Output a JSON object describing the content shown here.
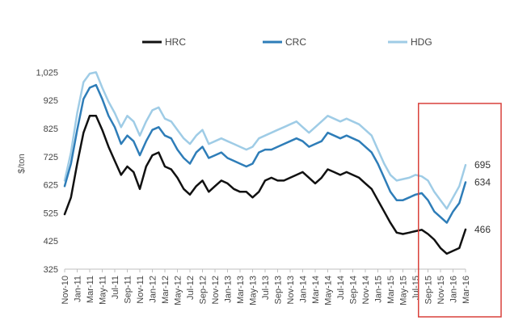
{
  "chart_data": {
    "type": "line",
    "title": "",
    "xlabel": "",
    "ylabel": "$/ton",
    "ylim": [
      325,
      1075
    ],
    "yticks": [
      325,
      425,
      525,
      625,
      725,
      825,
      925,
      "1,025"
    ],
    "x_tick_labels": [
      "Nov-10",
      "Jan-11",
      "Mar-11",
      "May-11",
      "Jul-11",
      "Sep-11",
      "Nov-11",
      "Jan-12",
      "Mar-12",
      "May-12",
      "Jul-12",
      "Sep-12",
      "Nov-12",
      "Jan-13",
      "Mar-13",
      "May-13",
      "Jul-13",
      "Sep-13",
      "Nov-13",
      "Jan-14",
      "Mar-14",
      "May-14",
      "Jul-14",
      "Sep-14",
      "Nov-14",
      "Jan-15",
      "Mar-15",
      "May-15",
      "Jul-15",
      "Sep-15",
      "Nov-15",
      "Jan-16",
      "Mar-16"
    ],
    "x_start": "Nov-10",
    "x_end": "Apr-16",
    "grid": false,
    "legend_position": "top",
    "highlight_start": "Aug-15",
    "highlight_color": "#d9413b",
    "series": [
      {
        "name": "HRC",
        "color": "#111111",
        "end_label": "466",
        "values": [
          520,
          580,
          700,
          810,
          870,
          870,
          820,
          760,
          710,
          660,
          690,
          670,
          610,
          690,
          730,
          740,
          690,
          680,
          650,
          610,
          590,
          620,
          640,
          600,
          620,
          640,
          630,
          610,
          600,
          600,
          580,
          600,
          640,
          650,
          640,
          640,
          650,
          660,
          670,
          650,
          630,
          650,
          680,
          670,
          660,
          670,
          660,
          650,
          630,
          610,
          570,
          530,
          490,
          455,
          450,
          455,
          460,
          465,
          450,
          430,
          400,
          380,
          390,
          400,
          466
        ]
      },
      {
        "name": "CRC",
        "color": "#2e7db8",
        "end_label": "634",
        "values": [
          620,
          700,
          820,
          930,
          970,
          980,
          930,
          870,
          830,
          770,
          800,
          780,
          730,
          780,
          820,
          830,
          800,
          790,
          750,
          720,
          700,
          740,
          760,
          720,
          730,
          740,
          720,
          710,
          700,
          690,
          700,
          740,
          750,
          750,
          760,
          770,
          780,
          790,
          780,
          760,
          770,
          780,
          810,
          800,
          790,
          800,
          790,
          780,
          760,
          740,
          700,
          650,
          600,
          570,
          570,
          580,
          590,
          595,
          570,
          530,
          510,
          490,
          530,
          560,
          634
        ]
      },
      {
        "name": "HDG",
        "color": "#9fcce6",
        "end_label": "695",
        "values": [
          640,
          740,
          880,
          990,
          1020,
          1025,
          970,
          920,
          880,
          830,
          870,
          850,
          800,
          850,
          890,
          900,
          860,
          850,
          820,
          790,
          770,
          800,
          820,
          770,
          780,
          790,
          780,
          770,
          760,
          750,
          760,
          790,
          800,
          810,
          820,
          830,
          840,
          850,
          830,
          810,
          830,
          850,
          870,
          860,
          850,
          860,
          850,
          840,
          820,
          800,
          750,
          700,
          660,
          640,
          645,
          650,
          660,
          655,
          640,
          600,
          570,
          540,
          580,
          620,
          695
        ]
      }
    ]
  }
}
